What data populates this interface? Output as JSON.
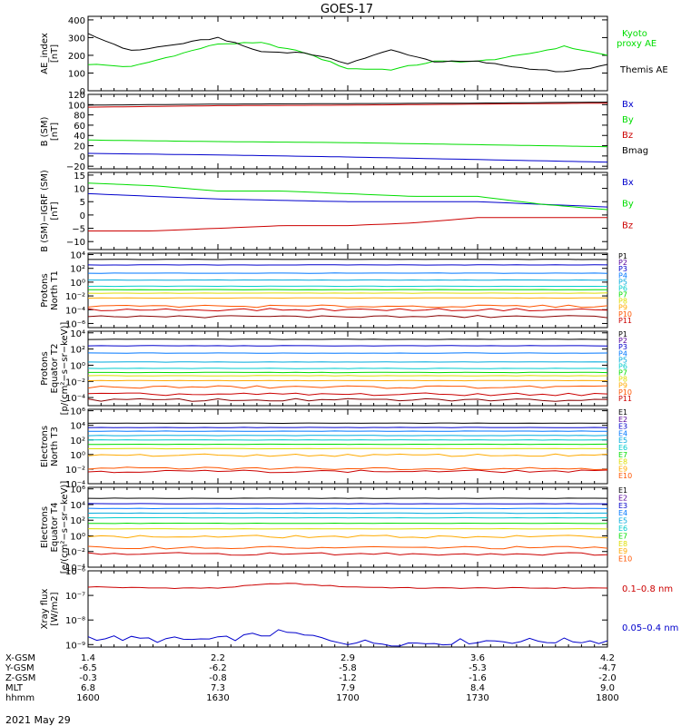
{
  "title": "GOES-17",
  "date_label": "2021 May 29",
  "colors": {
    "black": "#000000",
    "blue": "#0000cc",
    "green": "#00dd00",
    "red": "#cc0000",
    "p_lbl": [
      "#000000",
      "#550099",
      "#0000cc",
      "#0077ff",
      "#00aadd",
      "#00cccc",
      "#00dd00",
      "#dddd00",
      "#ffaa00",
      "#ff5500",
      "#cc0000",
      "#880000"
    ],
    "e_lbl": [
      "#000000",
      "#550099",
      "#0000cc",
      "#0077ff",
      "#00aadd",
      "#00cccc",
      "#00dd00",
      "#dddd00",
      "#ffaa00",
      "#ff5500",
      "#cc0000"
    ]
  },
  "orbit_table": {
    "row_labels": [
      "X-GSM",
      "Y-GSM",
      "Z-GSM",
      "MLT",
      "hhmm"
    ],
    "columns": [
      [
        "1.4",
        "-6.5",
        "-0.3",
        "6.8",
        "1600"
      ],
      [
        "2.2",
        "-6.2",
        "-0.8",
        "7.3",
        "1630"
      ],
      [
        "2.9",
        "-5.8",
        "-1.2",
        "7.9",
        "1700"
      ],
      [
        "3.6",
        "-5.3",
        "-1.6",
        "8.4",
        "1730"
      ],
      [
        "4.2",
        "-4.7",
        "-2.0",
        "9.0",
        "1800"
      ]
    ]
  },
  "chart_data": [
    {
      "type": "line",
      "ylabel": [
        "AE_index",
        "[nT]"
      ],
      "ylim": [
        0,
        420
      ],
      "yticks": [
        "0",
        "100",
        "200",
        "300",
        "400"
      ],
      "x_hhmm": [
        "1600",
        "1610",
        "1620",
        "1630",
        "1640",
        "1650",
        "1700",
        "1710",
        "1720",
        "1730",
        "1740",
        "1750",
        "1800"
      ],
      "series": [
        {
          "name": "Kyoto proxy AE",
          "color": "#00dd00",
          "values": [
            150,
            135,
            200,
            265,
            270,
            215,
            125,
            120,
            165,
            165,
            200,
            250,
            200
          ]
        },
        {
          "name": "Themis AE",
          "color": "#000000",
          "values": [
            320,
            225,
            260,
            300,
            220,
            215,
            155,
            230,
            165,
            165,
            130,
            105,
            145
          ]
        }
      ]
    },
    {
      "type": "line",
      "ylabel": [
        "B (SM)",
        "[nT]"
      ],
      "ylim": [
        -25,
        120
      ],
      "yticks": [
        "−20",
        "0",
        "20",
        "40",
        "60",
        "80",
        "100",
        "120"
      ],
      "x_hhmm": [
        "1600",
        "1630",
        "1700",
        "1730",
        "1800"
      ],
      "series": [
        {
          "name": "Bx",
          "color": "#0000cc",
          "values": [
            5,
            2,
            -2,
            -7,
            -12
          ]
        },
        {
          "name": "By",
          "color": "#00dd00",
          "values": [
            31,
            28,
            26,
            22,
            18
          ]
        },
        {
          "name": "Bz",
          "color": "#cc0000",
          "values": [
            95,
            98,
            99,
            101,
            103
          ]
        },
        {
          "name": "Bmag",
          "color": "#000000",
          "values": [
            99,
            101,
            102,
            103,
            105
          ]
        }
      ]
    },
    {
      "type": "line",
      "ylabel": [
        "B (SM)−IGRF (SM)",
        "[nT]"
      ],
      "ylim": [
        -13,
        16
      ],
      "yticks": [
        "−10",
        "−5",
        "0",
        "5",
        "10",
        "15"
      ],
      "x_hhmm": [
        "1600",
        "1615",
        "1630",
        "1645",
        "1700",
        "1715",
        "1730",
        "1745",
        "1800"
      ],
      "series": [
        {
          "name": "Bx",
          "color": "#0000cc",
          "values": [
            8,
            7,
            6,
            5.5,
            5,
            5,
            5,
            4,
            3
          ]
        },
        {
          "name": "By",
          "color": "#00dd00",
          "values": [
            12,
            11,
            9,
            9,
            8,
            7,
            7,
            4,
            2
          ]
        },
        {
          "name": "Bz",
          "color": "#cc0000",
          "values": [
            -6,
            -6,
            -5,
            -4,
            -4,
            -3,
            -1,
            -1,
            -1
          ]
        }
      ]
    },
    {
      "type": "line",
      "ylabel": [
        "Protons",
        "North T1"
      ],
      "log": true,
      "ylim_exp": [
        -6.6,
        4.2
      ],
      "yticks": [
        "10⁻⁶",
        "10⁻⁴",
        "10⁻²",
        "10⁰",
        "10²",
        "10⁴"
      ],
      "channels": [
        "P1",
        "P2",
        "P3",
        "P4",
        "P5",
        "P6",
        "P7",
        "P8",
        "P9",
        "P10",
        "P11"
      ],
      "levels_log10": [
        3.3,
        2.5,
        1.3,
        0.3,
        -0.6,
        -1.1,
        -1.6,
        -2.3,
        -3.5,
        -4.0,
        -5.0
      ]
    },
    {
      "type": "line",
      "ylabel": [
        "Protons",
        "Equator T2"
      ],
      "log": true,
      "ylim_exp": [
        -5.0,
        4.2
      ],
      "yticks": [
        "10⁻⁴",
        "10⁻²",
        "10⁰",
        "10²",
        "10⁴"
      ],
      "channels": [
        "P1",
        "P2",
        "P3",
        "P4",
        "P5",
        "P6",
        "P7",
        "P8",
        "P9",
        "P10",
        "P11"
      ],
      "levels_log10": [
        3.2,
        2.4,
        1.5,
        0.4,
        -0.4,
        -0.9,
        -1.3,
        -1.9,
        -2.7,
        -3.6,
        -4.3
      ]
    },
    {
      "type": "line",
      "ylabel": [
        "Electrons",
        "North T3"
      ],
      "log": true,
      "ylim_exp": [
        -4.0,
        6.2
      ],
      "yticks": [
        "10⁻⁴",
        "10⁻²",
        "10⁰",
        "10²",
        "10⁴",
        "10⁶"
      ],
      "channels": [
        "E1",
        "E2",
        "E3",
        "E4",
        "E5",
        "E6",
        "E7",
        "E8",
        "E9",
        "E10"
      ],
      "levels_log10": [
        4.3,
        3.7,
        3.2,
        2.6,
        2.0,
        1.4,
        0.8,
        -0.1,
        -1.9,
        -2.3
      ]
    },
    {
      "type": "line",
      "ylabel": [
        "Electrons",
        "Equator T4"
      ],
      "log": true,
      "ylim_exp": [
        -4.0,
        6.2
      ],
      "yticks": [
        "10⁻⁴",
        "10⁻²",
        "10⁰",
        "10²",
        "10⁴",
        "10⁶"
      ],
      "channels": [
        "E1",
        "E2",
        "E3",
        "E4",
        "E5",
        "E6",
        "E7",
        "E8",
        "E9",
        "E10"
      ],
      "levels_log10": [
        4.8,
        4.1,
        3.5,
        2.9,
        2.3,
        1.6,
        0.9,
        -0.1,
        -1.5,
        -2.3
      ]
    },
    {
      "type": "line",
      "ylabel": [
        "Xray flux",
        "[W/m2]"
      ],
      "log": true,
      "ylim_exp": [
        -9.1,
        -6.0
      ],
      "yticks": [
        "10⁻⁹",
        "10⁻⁸",
        "10⁻⁷",
        "10⁻⁶"
      ],
      "x_hhmm": [
        "1600",
        "1615",
        "1630",
        "1645",
        "1700",
        "1715",
        "1730",
        "1745",
        "1800"
      ],
      "series": [
        {
          "name": "0.1–0.8 nm",
          "color": "#cc0000",
          "log10": [
            -6.65,
            -6.7,
            -6.7,
            -6.5,
            -6.65,
            -6.7,
            -6.7,
            -6.7,
            -6.7
          ]
        },
        {
          "name": "0.05–0.4 nm",
          "color": "#0000cc",
          "log10": [
            -8.7,
            -8.8,
            -8.8,
            -8.5,
            -8.9,
            -8.95,
            -8.85,
            -8.85,
            -8.85
          ]
        }
      ]
    }
  ],
  "extra_labels": {
    "p_units": "[p/(cm²−s−sr−keV)]",
    "e_units": "[e/(cm²−s−sr−keV)]"
  }
}
